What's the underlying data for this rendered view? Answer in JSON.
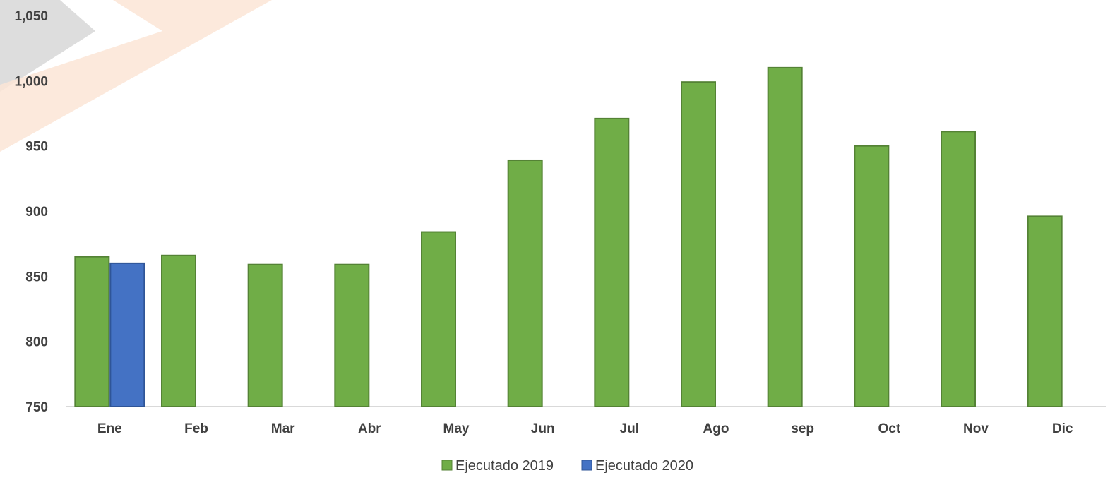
{
  "chart_data": {
    "type": "bar",
    "categories": [
      "Ene",
      "Feb",
      "Mar",
      "Abr",
      "May",
      "Jun",
      "Jul",
      "Ago",
      "sep",
      "Oct",
      "Nov",
      "Dic"
    ],
    "series": [
      {
        "name": "Ejecutado 2019",
        "color": "#70AD47",
        "stroke": "#548235",
        "values": [
          865,
          866,
          859,
          859,
          884,
          939,
          971,
          999,
          1010,
          950,
          961,
          896
        ]
      },
      {
        "name": "Ejecutado 2020",
        "color": "#4472C4",
        "stroke": "#2F5597",
        "values": [
          860,
          null,
          null,
          null,
          null,
          null,
          null,
          null,
          null,
          null,
          null,
          null
        ]
      }
    ],
    "ylim": [
      750,
      1050
    ],
    "yticks": [
      "750",
      "800",
      "850",
      "900",
      "950",
      "1,000",
      "1,050"
    ],
    "ytick_values": [
      750,
      800,
      850,
      900,
      950,
      1000,
      1050
    ],
    "grid": false,
    "legend_position": "bottom",
    "background_decoration": {
      "colors": [
        "#D9D9D9",
        "#FBE5D6"
      ]
    }
  }
}
